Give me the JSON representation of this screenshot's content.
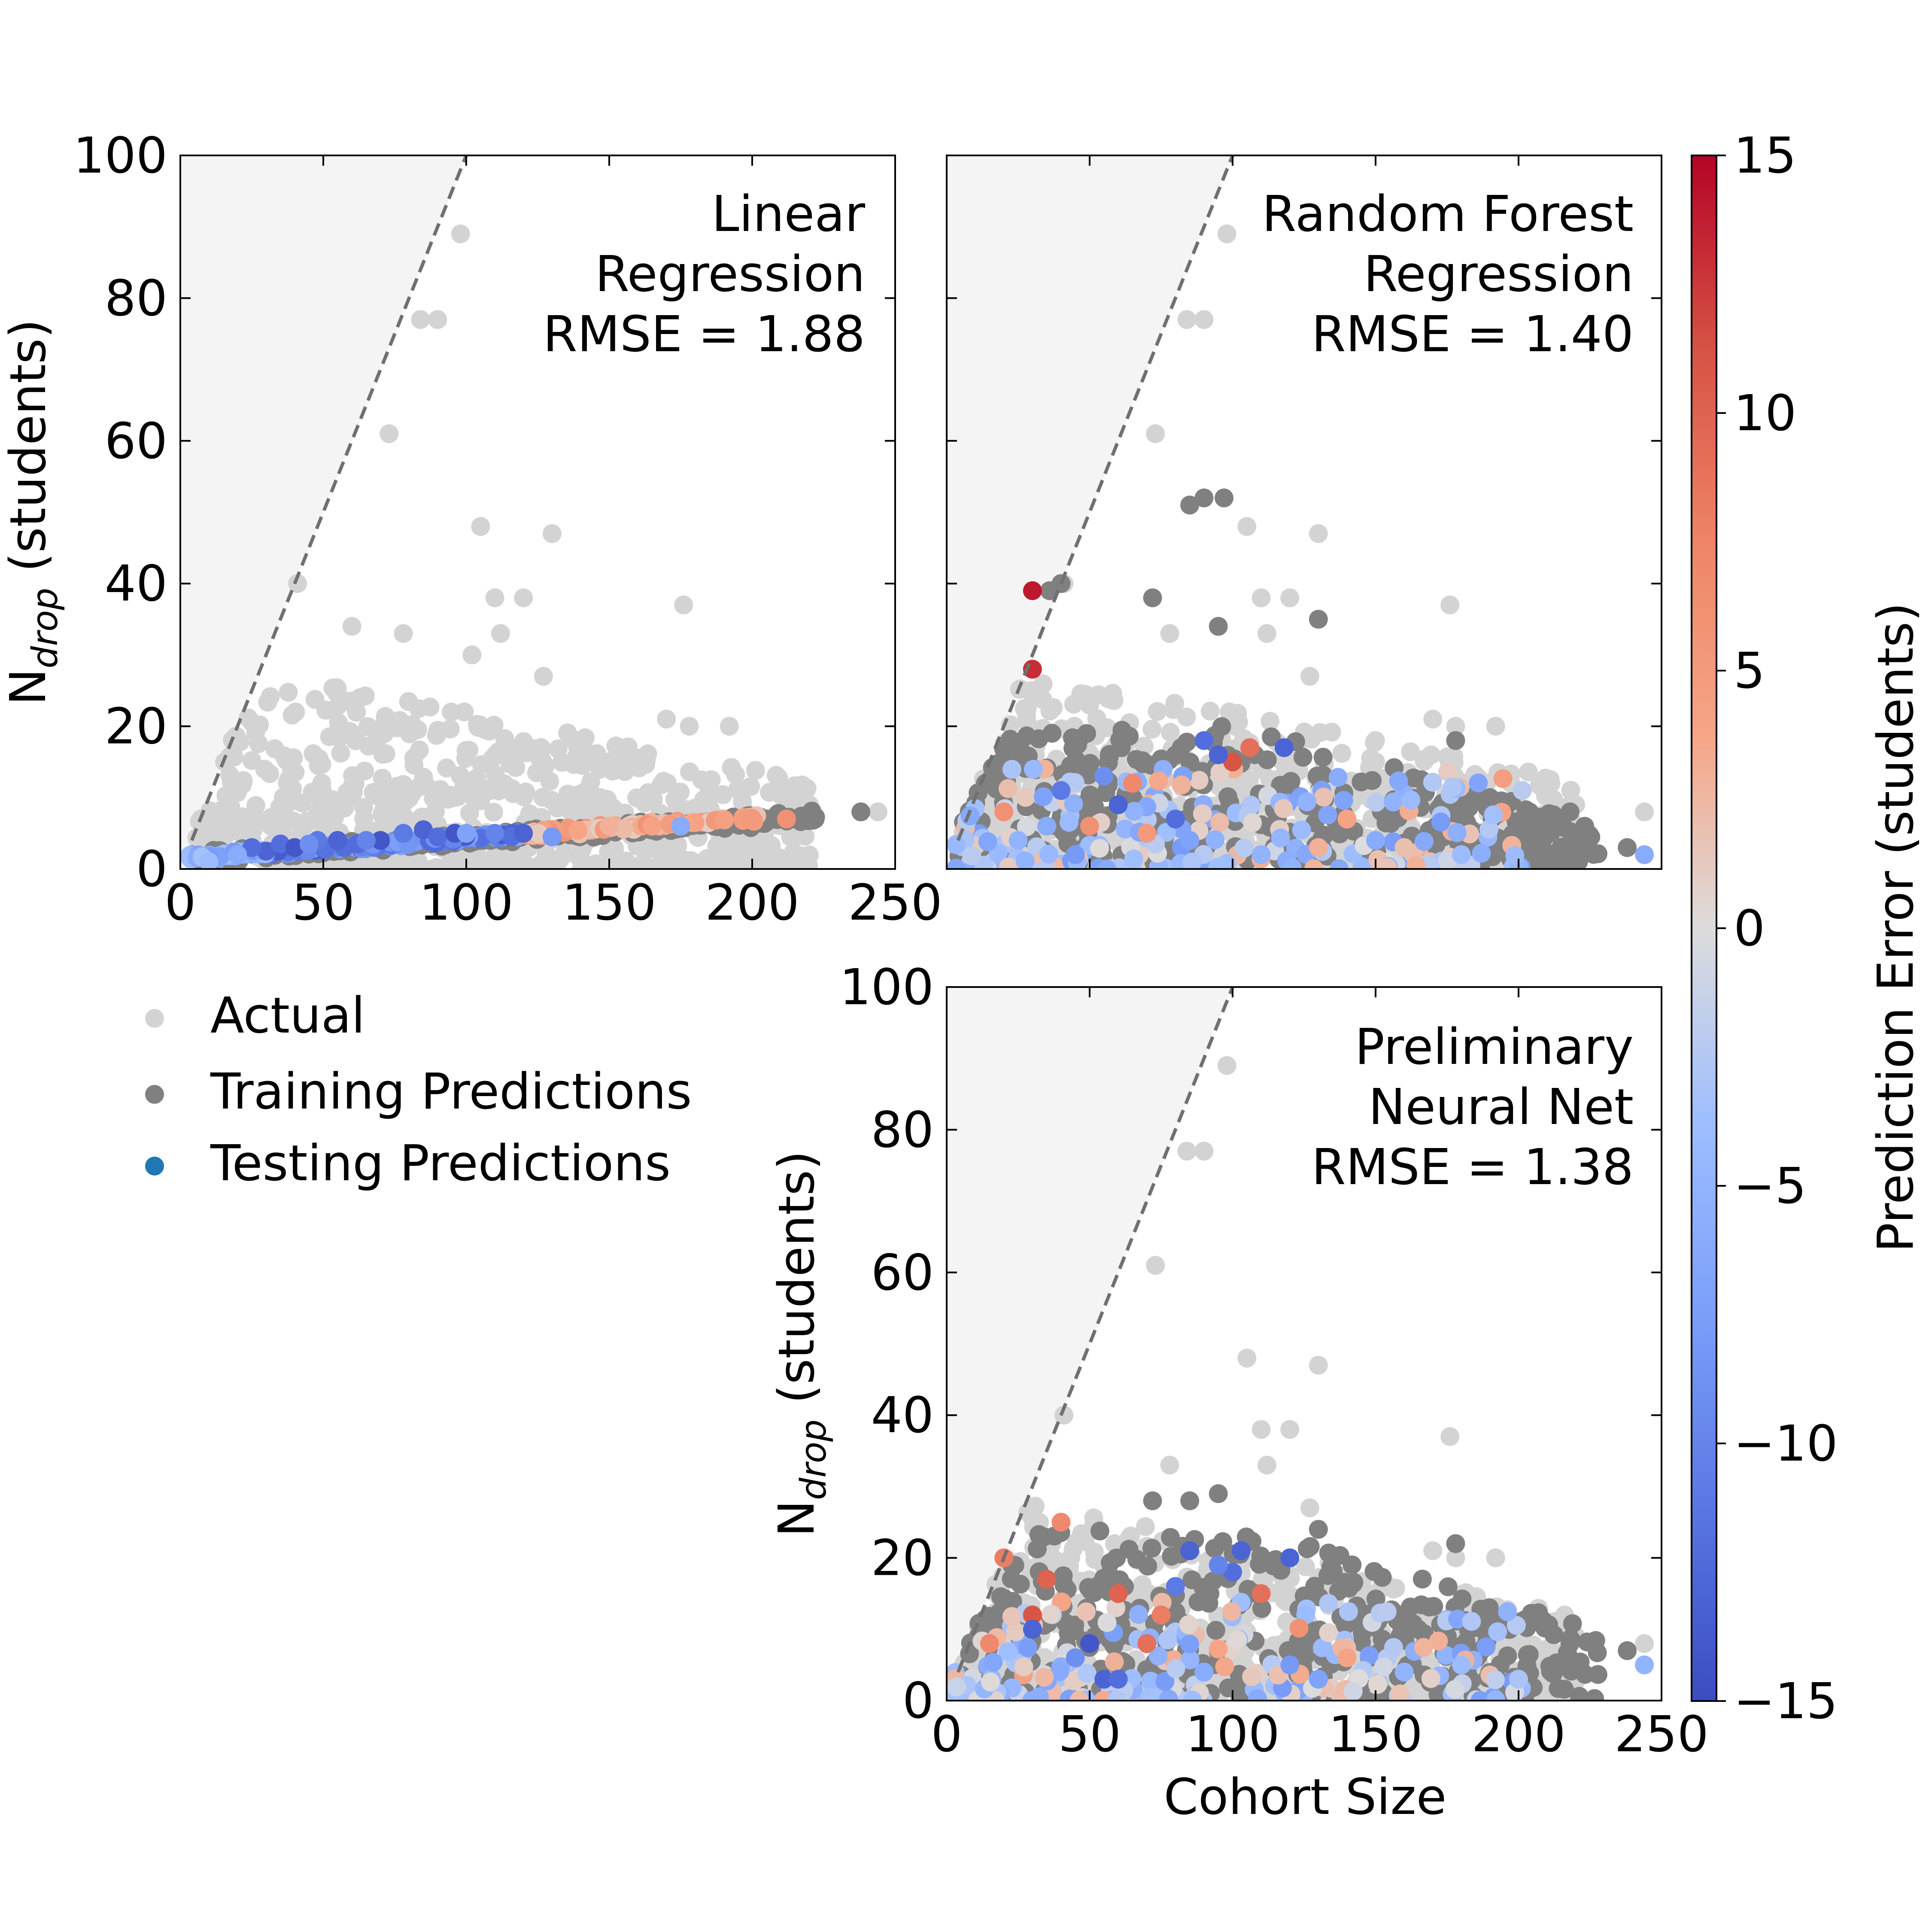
{
  "colors": {
    "actual": "#d3d3d3",
    "training": "#808080",
    "testing_legend": "#1f77b4",
    "shade": "#f4f4f4",
    "guide_line": "#707070",
    "colormap": "coolwarm"
  },
  "legend": {
    "placement": "left, below top-left panel",
    "items": [
      {
        "key": "actual",
        "label": "Actual"
      },
      {
        "key": "training",
        "label": "Training Predictions"
      },
      {
        "key": "testing",
        "label": "Testing Predictions"
      }
    ]
  },
  "colorbar": {
    "label": "Prediction Error (students)",
    "range": [
      -15,
      15
    ],
    "ticks": [
      "15",
      "10",
      "5",
      "0",
      "−5",
      "−10",
      "−15"
    ],
    "tick_values": [
      15,
      10,
      5,
      0,
      -5,
      -10,
      -15
    ],
    "colormap": "coolwarm"
  },
  "chart_data": [
    {
      "type": "scatter",
      "panel": "top-left",
      "annotation": [
        "Linear",
        "Regression",
        "RMSE = 1.88"
      ],
      "xlabel": "",
      "ylabel_main": "N",
      "ylabel_sub": "drop",
      "ylabel_rest": " (students)",
      "xlim": [
        0,
        250
      ],
      "ylim": [
        0,
        100
      ],
      "x_ticks": [
        "0",
        "50",
        "100",
        "150",
        "200",
        "250"
      ],
      "y_ticks": [
        "0",
        "20",
        "40",
        "60",
        "80",
        "100"
      ],
      "show_x_ticklabels": true,
      "show_y_ticklabels": true,
      "guide_line_slope": 1,
      "actual_outliers": [
        [
          98,
          89
        ],
        [
          84,
          77
        ],
        [
          90,
          77
        ],
        [
          73,
          61
        ],
        [
          105,
          48
        ],
        [
          130,
          47
        ],
        [
          41,
          40
        ],
        [
          110,
          38
        ],
        [
          120,
          38
        ],
        [
          176,
          37
        ],
        [
          78,
          33
        ],
        [
          112,
          33
        ],
        [
          127,
          27
        ],
        [
          170,
          21
        ],
        [
          178,
          20
        ],
        [
          192,
          20
        ],
        [
          150,
          15
        ],
        [
          220,
          9
        ],
        [
          244,
          8
        ],
        [
          102,
          30
        ],
        [
          60,
          34
        ]
      ],
      "training_outliers": [
        [
          222,
          7
        ],
        [
          238,
          8
        ],
        [
          210,
          7
        ]
      ],
      "testing_points": [
        [
          30,
          2.5,
          -13
        ],
        [
          35,
          3.5,
          -12
        ],
        [
          40,
          3,
          -14
        ],
        [
          48,
          4,
          -11
        ],
        [
          55,
          4,
          -13
        ],
        [
          62,
          3.5,
          -12
        ],
        [
          70,
          4,
          -14
        ],
        [
          78,
          5,
          -11
        ],
        [
          85,
          5.5,
          -13
        ],
        [
          90,
          4.5,
          -12
        ],
        [
          96,
          5,
          -14
        ],
        [
          110,
          5,
          -10
        ],
        [
          120,
          5,
          -13
        ],
        [
          130,
          4.5,
          -8
        ],
        [
          150,
          6,
          3
        ],
        [
          165,
          6,
          4
        ],
        [
          180,
          6.5,
          4
        ],
        [
          200,
          7,
          5
        ],
        [
          212,
          7,
          6
        ],
        [
          175,
          6,
          -6
        ],
        [
          25,
          3,
          -12
        ],
        [
          20,
          2,
          -6
        ],
        [
          10,
          1,
          -4
        ],
        [
          45,
          3.5,
          -9
        ],
        [
          65,
          4,
          -10
        ],
        [
          100,
          5,
          -7
        ]
      ]
    },
    {
      "type": "scatter",
      "panel": "top-right",
      "annotation": [
        "Random Forest",
        "Regression",
        "RMSE = 1.40"
      ],
      "xlabel": "",
      "ylabel_main": "",
      "ylabel_sub": "",
      "ylabel_rest": "",
      "xlim": [
        0,
        250
      ],
      "ylim": [
        0,
        100
      ],
      "x_ticks": [
        "0",
        "50",
        "100",
        "150",
        "200",
        "250"
      ],
      "y_ticks": [
        "0",
        "20",
        "40",
        "60",
        "80",
        "100"
      ],
      "show_x_ticklabels": false,
      "show_y_ticklabels": false,
      "guide_line_slope": 1,
      "actual_outliers": [
        [
          98,
          89
        ],
        [
          84,
          77
        ],
        [
          90,
          77
        ],
        [
          73,
          61
        ],
        [
          105,
          48
        ],
        [
          130,
          47
        ],
        [
          41,
          40
        ],
        [
          110,
          38
        ],
        [
          120,
          38
        ],
        [
          176,
          37
        ],
        [
          78,
          33
        ],
        [
          112,
          33
        ],
        [
          127,
          27
        ],
        [
          170,
          21
        ],
        [
          178,
          20
        ],
        [
          192,
          20
        ],
        [
          150,
          15
        ],
        [
          220,
          9
        ],
        [
          244,
          8
        ]
      ],
      "training_outliers": [
        [
          36,
          39
        ],
        [
          40,
          40
        ],
        [
          72,
          38
        ],
        [
          85,
          51
        ],
        [
          90,
          52
        ],
        [
          97,
          52
        ],
        [
          95,
          34
        ],
        [
          130,
          35
        ],
        [
          178,
          18
        ],
        [
          190,
          10
        ],
        [
          218,
          8
        ],
        [
          238,
          3
        ]
      ],
      "testing_points": [
        [
          30,
          28,
          13
        ],
        [
          30,
          39,
          14
        ],
        [
          100,
          15,
          11
        ],
        [
          106,
          17,
          9
        ],
        [
          90,
          18,
          -12
        ],
        [
          95,
          16,
          -13
        ],
        [
          118,
          17,
          -13
        ],
        [
          80,
          7,
          -12
        ],
        [
          60,
          9,
          -13
        ],
        [
          40,
          11,
          -11
        ],
        [
          50,
          6,
          6
        ],
        [
          70,
          5,
          5
        ],
        [
          20,
          8,
          6
        ],
        [
          85,
          4,
          -7
        ],
        [
          110,
          2,
          -5
        ],
        [
          130,
          3,
          3
        ],
        [
          150,
          4,
          -6
        ],
        [
          244,
          2,
          -6
        ],
        [
          180,
          2,
          -4
        ],
        [
          160,
          3,
          2
        ],
        [
          45,
          2,
          -8
        ],
        [
          55,
          13,
          -9
        ],
        [
          65,
          12,
          7
        ],
        [
          140,
          7,
          4
        ],
        [
          25,
          4,
          -5
        ],
        [
          35,
          6,
          -6
        ]
      ]
    },
    {
      "type": "scatter",
      "panel": "bottom-right",
      "annotation": [
        "Preliminary",
        "Neural Net",
        "RMSE = 1.38"
      ],
      "xlabel": "Cohort Size",
      "ylabel_main": "N",
      "ylabel_sub": "drop",
      "ylabel_rest": " (students)",
      "xlim": [
        0,
        250
      ],
      "ylim": [
        0,
        100
      ],
      "x_ticks": [
        "0",
        "50",
        "100",
        "150",
        "200",
        "250"
      ],
      "y_ticks": [
        "0",
        "20",
        "40",
        "60",
        "80",
        "100"
      ],
      "show_x_ticklabels": true,
      "show_y_ticklabels": true,
      "guide_line_slope": 1,
      "actual_outliers": [
        [
          98,
          89
        ],
        [
          84,
          77
        ],
        [
          90,
          77
        ],
        [
          73,
          61
        ],
        [
          105,
          48
        ],
        [
          130,
          47
        ],
        [
          41,
          40
        ],
        [
          110,
          38
        ],
        [
          120,
          38
        ],
        [
          176,
          37
        ],
        [
          78,
          33
        ],
        [
          112,
          33
        ],
        [
          127,
          27
        ],
        [
          170,
          21
        ],
        [
          178,
          20
        ],
        [
          192,
          20
        ],
        [
          150,
          15
        ],
        [
          220,
          9
        ],
        [
          244,
          8
        ]
      ],
      "training_outliers": [
        [
          72,
          28
        ],
        [
          85,
          28
        ],
        [
          95,
          29
        ],
        [
          130,
          24
        ],
        [
          178,
          22
        ],
        [
          190,
          10
        ],
        [
          218,
          8
        ],
        [
          238,
          7
        ]
      ],
      "testing_points": [
        [
          85,
          21,
          -13
        ],
        [
          103,
          21,
          -13
        ],
        [
          120,
          20,
          -13
        ],
        [
          100,
          18,
          -12
        ],
        [
          95,
          19,
          -10
        ],
        [
          110,
          15,
          9
        ],
        [
          80,
          16,
          -11
        ],
        [
          60,
          15,
          10
        ],
        [
          30,
          12,
          11
        ],
        [
          35,
          17,
          10
        ],
        [
          40,
          25,
          7
        ],
        [
          20,
          20,
          8
        ],
        [
          50,
          8,
          -14
        ],
        [
          55,
          3,
          -13
        ],
        [
          60,
          3,
          -12
        ],
        [
          70,
          8,
          9
        ],
        [
          30,
          10,
          -13
        ],
        [
          90,
          4,
          -6
        ],
        [
          120,
          5,
          -8
        ],
        [
          160,
          4,
          -5
        ],
        [
          180,
          5,
          -4
        ],
        [
          244,
          5,
          -5
        ],
        [
          140,
          6,
          4
        ],
        [
          200,
          3,
          -3
        ],
        [
          15,
          8,
          7
        ],
        [
          45,
          6,
          -9
        ],
        [
          75,
          12,
          8
        ],
        [
          130,
          3,
          -7
        ]
      ]
    }
  ]
}
